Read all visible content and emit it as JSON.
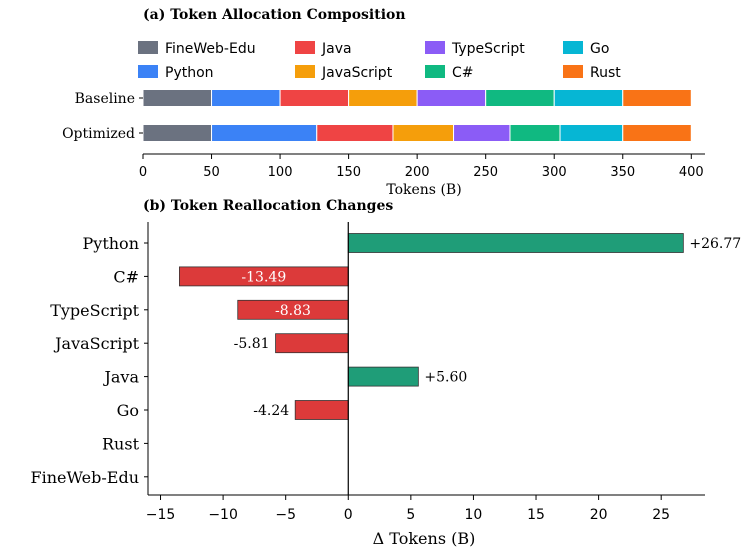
{
  "colors": {
    "FineWeb-Edu": "#6b7280",
    "Python": "#3b82f6",
    "Java": "#ef4444",
    "JavaScript": "#f59e0b",
    "TypeScript": "#8b5cf6",
    "C#": "#10b981",
    "Go": "#06b6d4",
    "Rust": "#f97316",
    "positive": "#1f9d78",
    "negative": "#dc3a3a"
  },
  "chart_data": [
    {
      "type": "bar",
      "orientation": "horizontal-stacked",
      "title": "(a) Token Allocation Composition",
      "xlabel": "Tokens (B)",
      "ylabel": "",
      "xlim": [
        0,
        410
      ],
      "xticks": [
        0,
        50,
        100,
        150,
        200,
        250,
        300,
        350,
        400
      ],
      "categories": [
        "Baseline",
        "Optimized"
      ],
      "legend_position": "top",
      "legend_entries": [
        "FineWeb-Edu",
        "Java",
        "TypeScript",
        "Go",
        "Python",
        "JavaScript",
        "C#",
        "Rust"
      ],
      "series": [
        {
          "name": "FineWeb-Edu",
          "values": [
            50,
            50
          ]
        },
        {
          "name": "Python",
          "values": [
            50,
            76.77
          ]
        },
        {
          "name": "Java",
          "values": [
            50,
            55.6
          ]
        },
        {
          "name": "JavaScript",
          "values": [
            50,
            44.19
          ]
        },
        {
          "name": "TypeScript",
          "values": [
            50,
            41.17
          ]
        },
        {
          "name": "C#",
          "values": [
            50,
            36.51
          ]
        },
        {
          "name": "Go",
          "values": [
            50,
            45.76
          ]
        },
        {
          "name": "Rust",
          "values": [
            50,
            50
          ]
        }
      ]
    },
    {
      "type": "bar",
      "orientation": "horizontal",
      "title": "(b) Token Reallocation Changes",
      "xlabel": "Δ Tokens (B)",
      "ylabel": "",
      "xlim": [
        -16,
        28.5
      ],
      "xticks": [
        -15,
        -10,
        -5,
        0,
        5,
        10,
        15,
        20,
        25
      ],
      "xtick_labels": [
        "−15",
        "−10",
        "−5",
        "0",
        "5",
        "10",
        "15",
        "20",
        "25"
      ],
      "categories": [
        "Python",
        "C#",
        "TypeScript",
        "JavaScript",
        "Java",
        "Go",
        "Rust",
        "FineWeb-Edu"
      ],
      "values": [
        26.77,
        -13.49,
        -8.83,
        -5.81,
        5.6,
        -4.24,
        0,
        0
      ],
      "labels": [
        "+26.77",
        "-13.49",
        "-8.83",
        "-5.81",
        "+5.60",
        "-4.24",
        "",
        ""
      ],
      "label_inside": [
        false,
        true,
        true,
        false,
        false,
        false,
        false,
        false
      ]
    }
  ]
}
